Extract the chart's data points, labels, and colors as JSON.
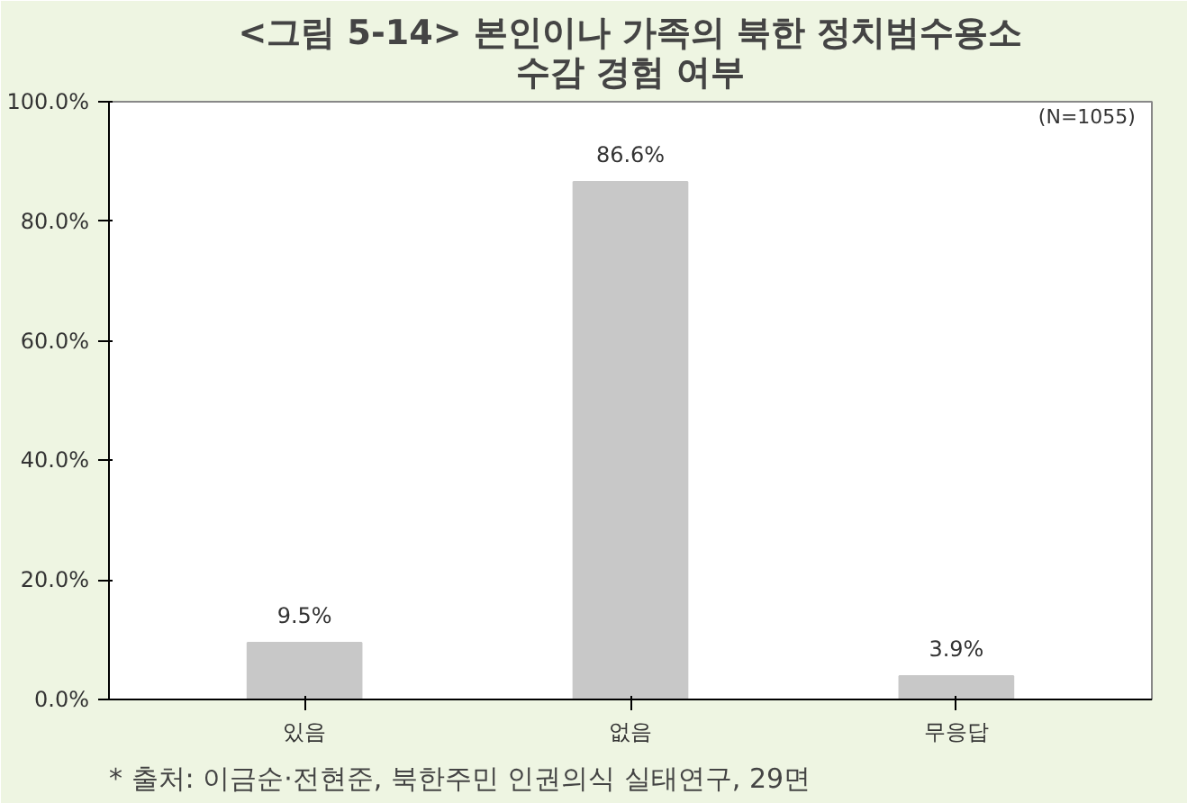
{
  "chart_data": {
    "type": "bar",
    "title": "<그림 5-14> 본인이나 가족의 북한 정치범수용소\n수감 경험 여부",
    "categories": [
      "있음",
      "없음",
      "무응답"
    ],
    "values": [
      9.5,
      86.6,
      3.9
    ],
    "value_labels": [
      "9.5%",
      "86.6%",
      "3.9%"
    ],
    "color": "#c8c8c8",
    "ylim": [
      0,
      100
    ],
    "yticks": [
      {
        "value": 0,
        "label": "0.0%"
      },
      {
        "value": 20,
        "label": "20.0%"
      },
      {
        "value": 40,
        "label": "40.0%"
      },
      {
        "value": 60,
        "label": "60.0%"
      },
      {
        "value": 80,
        "label": "80.0%"
      },
      {
        "value": 100,
        "label": "100.0%"
      }
    ],
    "grid": false,
    "annotations": [
      "(N=1055)",
      "* 출처: 이금순·전현준, 북한주민 인권의식 실태연구, 29면"
    ]
  }
}
